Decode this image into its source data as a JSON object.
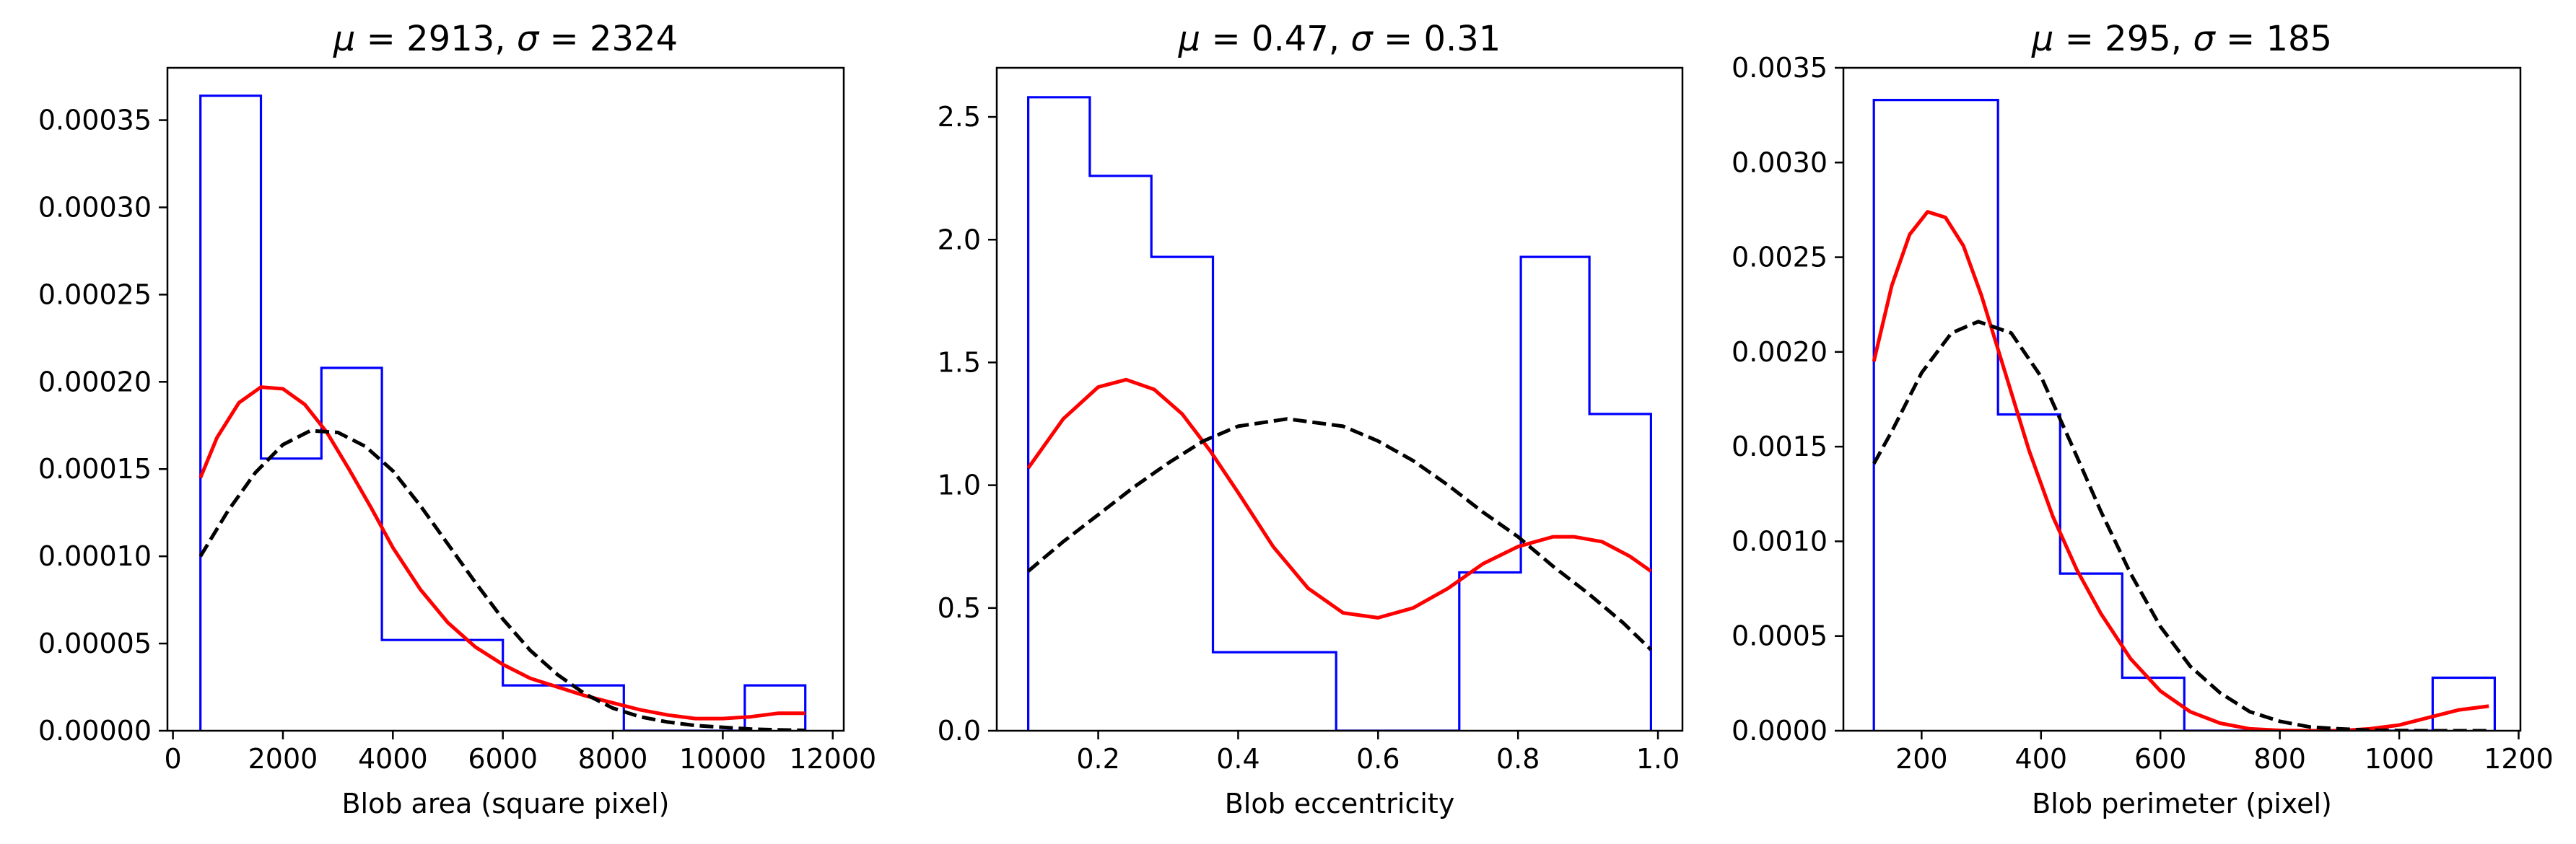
{
  "chart_data": [
    {
      "type": "histogram",
      "title_mu": "2913",
      "title_sigma": "2324",
      "xlabel": "Blob area (square pixel)",
      "ylabel": "",
      "xlim": [
        -100,
        12200
      ],
      "ylim": [
        0,
        0.00038
      ],
      "xticks": [
        0,
        2000,
        4000,
        6000,
        8000,
        10000,
        12000
      ],
      "xtick_labels": [
        "0",
        "2000",
        "4000",
        "6000",
        "8000",
        "10000",
        "12000"
      ],
      "yticks": [
        0,
        5e-05,
        0.0001,
        0.00015,
        0.0002,
        0.00025,
        0.0003,
        0.00035
      ],
      "ytick_labels": [
        "0.00000",
        "0.00005",
        "0.00010",
        "0.00015",
        "0.00020",
        "0.00025",
        "0.00030",
        "0.00035"
      ],
      "grid": false,
      "histogram": {
        "name": "histogram",
        "color": "#0000ff",
        "bin_edges": [
          500,
          1600,
          2700,
          3800,
          4900,
          6000,
          7100,
          8200,
          9300,
          10400,
          11500
        ],
        "heights": [
          0.000364,
          0.000156,
          0.000208,
          5.2e-05,
          5.2e-05,
          2.6e-05,
          2.6e-05,
          0,
          0,
          2.6e-05
        ]
      },
      "series": [
        {
          "name": "kde",
          "color": "#ff0000",
          "style": "solid",
          "x": [
            500,
            800,
            1200,
            1600,
            2000,
            2400,
            2800,
            3200,
            3600,
            4000,
            4500,
            5000,
            5500,
            6000,
            6500,
            7000,
            7500,
            8000,
            8500,
            9000,
            9500,
            10000,
            10500,
            11000,
            11500
          ],
          "y": [
            0.000145,
            0.000168,
            0.000188,
            0.000197,
            0.000196,
            0.000187,
            0.000171,
            0.00015,
            0.000128,
            0.000105,
            8.1e-05,
            6.2e-05,
            4.8e-05,
            3.8e-05,
            3e-05,
            2.5e-05,
            2e-05,
            1.6e-05,
            1.2e-05,
            9e-06,
            7e-06,
            7e-06,
            8e-06,
            1e-05,
            1e-05
          ]
        },
        {
          "name": "normal fit",
          "color": "#000000",
          "style": "dashed",
          "x": [
            500,
            1000,
            1500,
            2000,
            2500,
            3000,
            3500,
            4000,
            4500,
            5000,
            5500,
            6000,
            6500,
            7000,
            7500,
            8000,
            8500,
            9000,
            9500,
            10000,
            10500,
            11000,
            11500
          ],
          "y": [
            0.0001,
            0.000126,
            0.000148,
            0.000164,
            0.000172,
            0.000171,
            0.000163,
            0.000149,
            0.000129,
            0.000107,
            8.5e-05,
            6.4e-05,
            4.6e-05,
            3.2e-05,
            2.1e-05,
            1.3e-05,
            8e-06,
            5e-06,
            3e-06,
            2e-06,
            1e-06,
            5e-07,
            2e-07
          ]
        }
      ]
    },
    {
      "type": "histogram",
      "title_mu": "0.47",
      "title_sigma": "0.31",
      "xlabel": "Blob eccentricity",
      "ylabel": "",
      "xlim": [
        0.055,
        1.035
      ],
      "ylim": [
        0,
        2.7
      ],
      "xticks": [
        0.2,
        0.4,
        0.6,
        0.8,
        1.0
      ],
      "xtick_labels": [
        "0.2",
        "0.4",
        "0.6",
        "0.8",
        "1.0"
      ],
      "yticks": [
        0,
        0.5,
        1.0,
        1.5,
        2.0,
        2.5
      ],
      "ytick_labels": [
        "0.0",
        "0.5",
        "1.0",
        "1.5",
        "2.0",
        "2.5"
      ],
      "grid": false,
      "histogram": {
        "name": "histogram",
        "color": "#0000ff",
        "bin_edges": [
          0.1,
          0.188,
          0.276,
          0.364,
          0.452,
          0.54,
          0.628,
          0.716,
          0.804,
          0.902,
          0.99
        ],
        "heights": [
          2.58,
          2.26,
          1.93,
          0.32,
          0.32,
          0,
          0,
          0.645,
          1.93,
          1.29
        ]
      },
      "series": [
        {
          "name": "kde",
          "color": "#ff0000",
          "style": "solid",
          "x": [
            0.1,
            0.15,
            0.2,
            0.24,
            0.28,
            0.32,
            0.36,
            0.4,
            0.45,
            0.5,
            0.55,
            0.6,
            0.65,
            0.7,
            0.75,
            0.8,
            0.85,
            0.88,
            0.92,
            0.96,
            0.99
          ],
          "y": [
            1.07,
            1.27,
            1.4,
            1.43,
            1.39,
            1.29,
            1.14,
            0.97,
            0.75,
            0.58,
            0.48,
            0.46,
            0.5,
            0.58,
            0.68,
            0.75,
            0.79,
            0.79,
            0.77,
            0.71,
            0.65
          ]
        },
        {
          "name": "normal fit",
          "color": "#000000",
          "style": "dashed",
          "x": [
            0.1,
            0.15,
            0.2,
            0.25,
            0.3,
            0.35,
            0.4,
            0.47,
            0.55,
            0.6,
            0.65,
            0.7,
            0.75,
            0.8,
            0.85,
            0.9,
            0.95,
            0.99
          ],
          "y": [
            0.65,
            0.77,
            0.88,
            0.99,
            1.09,
            1.18,
            1.24,
            1.27,
            1.24,
            1.18,
            1.1,
            1.0,
            0.89,
            0.79,
            0.67,
            0.56,
            0.44,
            0.33
          ]
        }
      ]
    },
    {
      "type": "histogram",
      "title_mu": "295",
      "title_sigma": "185",
      "xlabel": "Blob perimeter (pixel)",
      "ylabel": "",
      "xlim": [
        69,
        1203
      ],
      "ylim": [
        0,
        0.0035
      ],
      "xticks": [
        200,
        400,
        600,
        800,
        1000,
        1200
      ],
      "xtick_labels": [
        "200",
        "400",
        "600",
        "800",
        "1000",
        "1200"
      ],
      "yticks": [
        0,
        0.0005,
        0.001,
        0.0015,
        0.002,
        0.0025,
        0.003,
        0.0035
      ],
      "ytick_labels": [
        "0.0000",
        "0.0005",
        "0.0010",
        "0.0015",
        "0.0020",
        "0.0025",
        "0.0030",
        "0.0035"
      ],
      "grid": false,
      "histogram": {
        "name": "histogram",
        "color": "#0000ff",
        "bin_edges": [
          120,
          224,
          328,
          432,
          536,
          640,
          744,
          848,
          952,
          1056,
          1160
        ],
        "heights": [
          0.00333,
          0.00333,
          0.00167,
          0.00083,
          0.00028,
          0,
          0,
          0,
          0,
          0.00028
        ]
      },
      "series": [
        {
          "name": "kde",
          "color": "#ff0000",
          "style": "solid",
          "x": [
            120,
            150,
            180,
            210,
            240,
            270,
            300,
            340,
            380,
            420,
            460,
            500,
            550,
            600,
            650,
            700,
            750,
            800,
            850,
            900,
            950,
            1000,
            1050,
            1100,
            1150
          ],
          "y": [
            0.00195,
            0.00235,
            0.00262,
            0.00274,
            0.00271,
            0.00256,
            0.0023,
            0.00189,
            0.00148,
            0.00113,
            0.00085,
            0.00062,
            0.00038,
            0.00021,
            0.0001,
            4e-05,
            1e-05,
            2e-06,
            0,
            0,
            1e-05,
            3e-05,
            7e-05,
            0.00011,
            0.00013
          ]
        },
        {
          "name": "normal fit",
          "color": "#000000",
          "style": "dashed",
          "x": [
            120,
            150,
            200,
            250,
            295,
            350,
            400,
            450,
            500,
            550,
            600,
            650,
            700,
            750,
            800,
            850,
            900,
            950,
            1000,
            1050,
            1100,
            1150
          ],
          "y": [
            0.00141,
            0.00158,
            0.00189,
            0.0021,
            0.00216,
            0.0021,
            0.00187,
            0.00152,
            0.00116,
            0.00083,
            0.00055,
            0.00034,
            0.0002,
            0.0001,
            5e-05,
            2e-05,
            1e-05,
            3e-06,
            1e-06,
            0,
            0,
            0
          ]
        }
      ]
    }
  ]
}
